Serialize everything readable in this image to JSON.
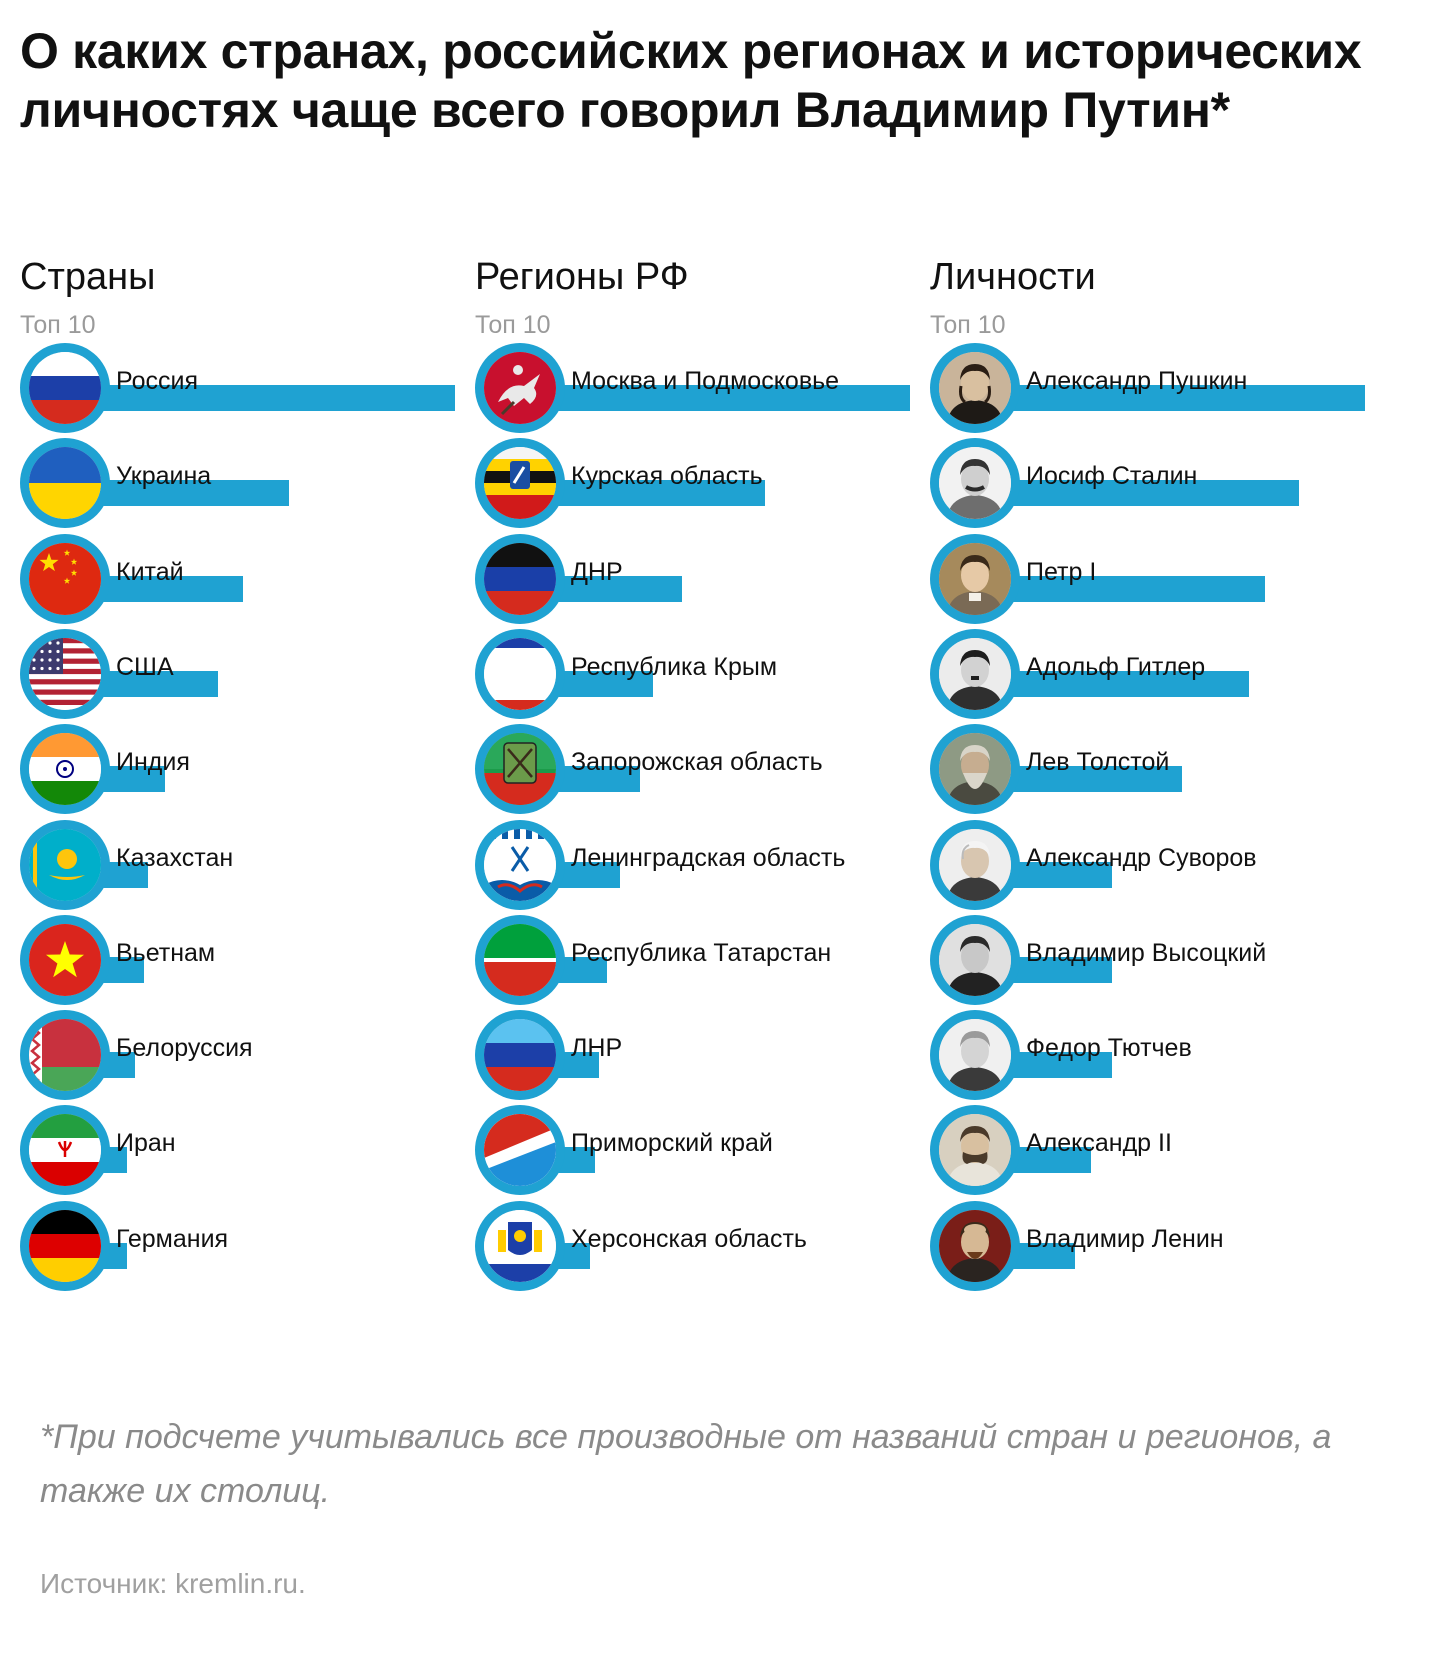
{
  "title": "О каких странах, российских регионах и исторических личностях чаще всего говорил Владимир Путин*",
  "footnote": "*При подсчете учитывались все производные от названий стран и регионов, а также их столиц.",
  "source": "Источник: kremlin.ru.",
  "colors": {
    "bar": "#1fa2d2",
    "text": "#111111",
    "muted": "#9a9a9a"
  },
  "chart_data": [
    {
      "type": "bar",
      "title": "Страны",
      "subtitle": "Топ 10",
      "categories": [
        "Россия",
        "Украина",
        "Китай",
        "США",
        "Индия",
        "Казахстан",
        "Вьетнам",
        "Белоруссия",
        "Иран",
        "Германия"
      ],
      "values": [
        100,
        60,
        49,
        43,
        30,
        26,
        25,
        23,
        21,
        21
      ],
      "value_scale": "relative, longest bar = 100",
      "icons": [
        "russia-flag-icon",
        "ukraine-flag-icon",
        "china-flag-icon",
        "usa-flag-icon",
        "india-flag-icon",
        "kazakhstan-flag-icon",
        "vietnam-flag-icon",
        "belarus-flag-icon",
        "iran-flag-icon",
        "germany-flag-icon"
      ]
    },
    {
      "type": "bar",
      "title": "Регионы РФ",
      "subtitle": "Топ 10",
      "categories": [
        "Москва и Подмосковье",
        "Курская область",
        "ДНР",
        "Республика Крым",
        "Запорожская область",
        "Ленинградская область",
        "Республика Татарстан",
        "ЛНР",
        "Приморский край",
        "Херсонская область"
      ],
      "values": [
        100,
        65,
        45,
        38,
        35,
        30,
        27,
        25,
        24,
        23
      ],
      "value_scale": "relative, longest bar = 100",
      "icons": [
        "moscow-coat-of-arms-icon",
        "kursk-flag-icon",
        "dnr-flag-icon",
        "crimea-flag-icon",
        "zaporozhye-flag-icon",
        "leningrad-oblast-flag-icon",
        "tatarstan-flag-icon",
        "lnr-flag-icon",
        "primorsky-flag-icon",
        "kherson-flag-icon"
      ]
    },
    {
      "type": "bar",
      "title": "Личности",
      "subtitle": "Топ 10",
      "categories": [
        "Александр Пушкин",
        "Иосиф Сталин",
        "Петр I",
        "Адольф Гитлер",
        "Лев Толстой",
        "Александр Суворов",
        "Владимир Высоцкий",
        "Федор Тютчев",
        "Александр II",
        "Владимир Ленин"
      ],
      "values": [
        100,
        84,
        76,
        72,
        56,
        39,
        39,
        39,
        34,
        30
      ],
      "value_scale": "relative, longest bar = 100",
      "icons": [
        "pushkin-portrait-icon",
        "stalin-portrait-icon",
        "peter-i-portrait-icon",
        "hitler-portrait-icon",
        "tolstoy-portrait-icon",
        "suvorov-portrait-icon",
        "vysotsky-portrait-icon",
        "tyutchev-portrait-icon",
        "alexander-ii-portrait-icon",
        "lenin-portrait-icon"
      ]
    }
  ]
}
